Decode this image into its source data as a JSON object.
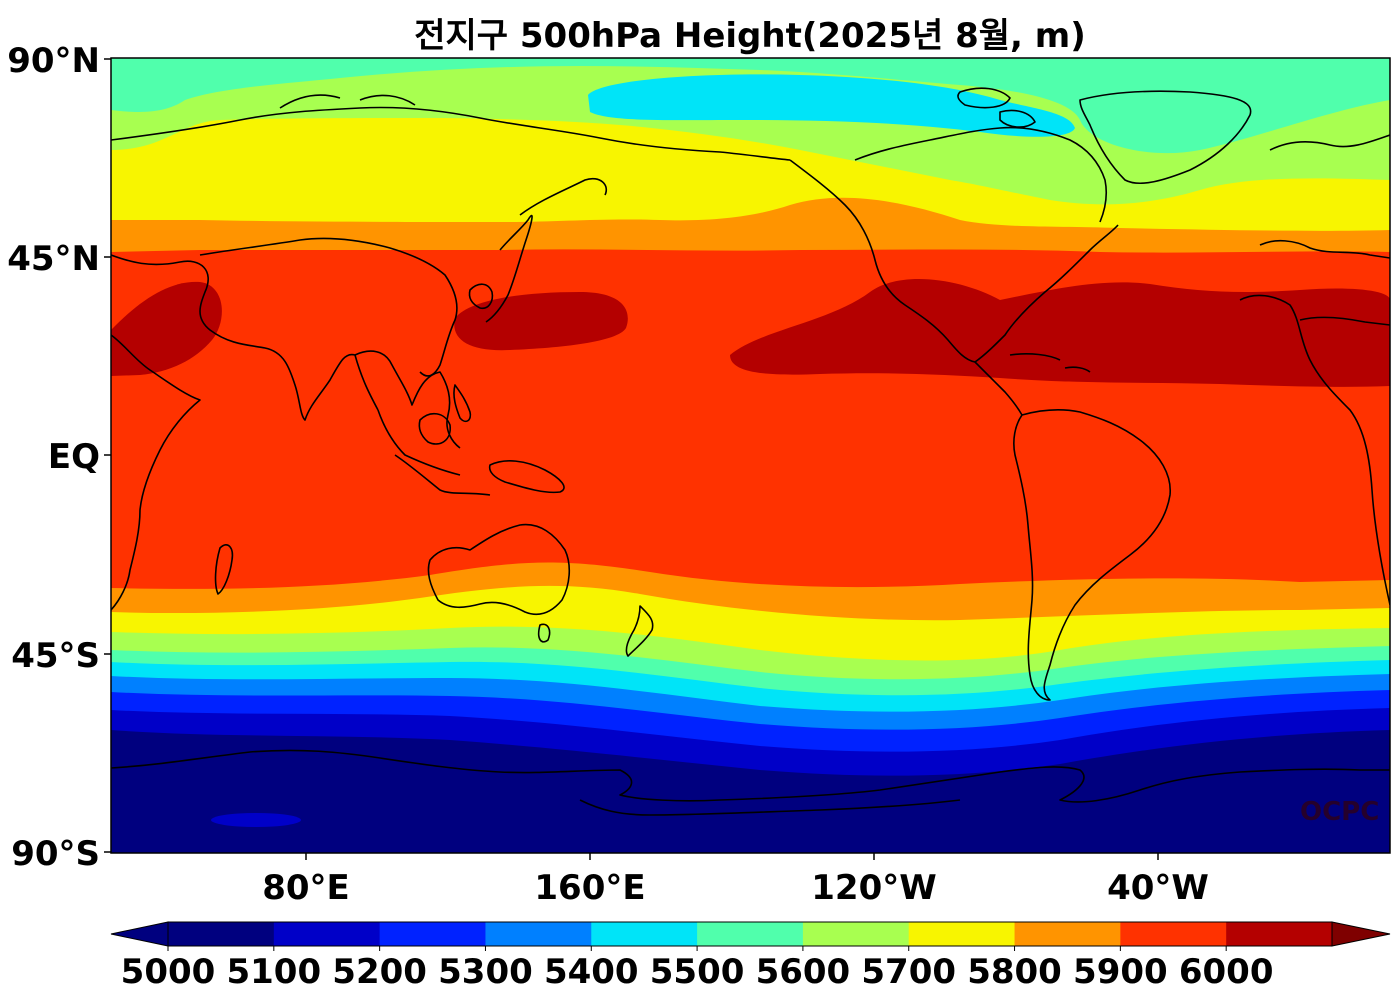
{
  "title": "전지구 500hPa Height(2025년 8월, m)",
  "axes": {
    "lat_labels": [
      "90°N",
      "45°N",
      "EQ",
      "45°S",
      "90°S"
    ],
    "lon_labels": [
      "80°E",
      "160°E",
      "120°W",
      "40°W"
    ]
  },
  "colorbar": {
    "levels": [
      "5000",
      "5100",
      "5200",
      "5300",
      "5400",
      "5500",
      "5600",
      "5700",
      "5800",
      "5900",
      "6000"
    ],
    "colors": [
      "#00007f",
      "#0000c8",
      "#0022ff",
      "#0080ff",
      "#00e4f8",
      "#50ffac",
      "#a8ff50",
      "#f8f500",
      "#ff9400",
      "#ff3200",
      "#b40000"
    ],
    "under_color": "#00007f",
    "over_color": "#7f0000"
  },
  "watermark": "OCPC"
}
